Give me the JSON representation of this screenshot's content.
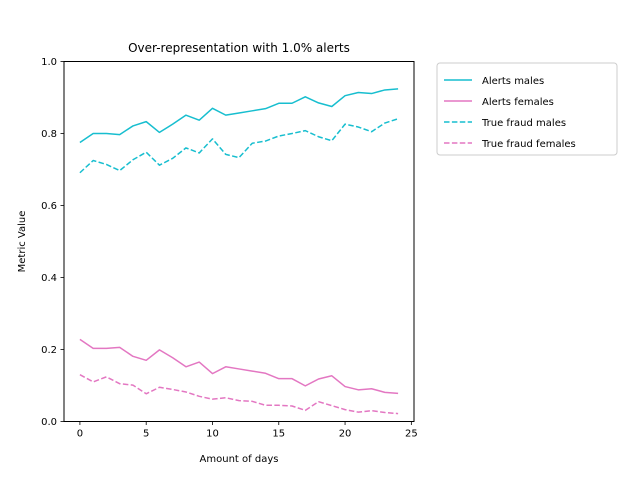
{
  "chart_data": {
    "type": "line",
    "title": "Over-representation with 1.0% alerts",
    "xlabel": "Amount of days",
    "ylabel": "Metric Value",
    "xlim": [
      -1.2,
      25.2
    ],
    "ylim": [
      0,
      1.0
    ],
    "xticks": [
      0,
      5,
      10,
      15,
      20,
      25
    ],
    "yticks": [
      0.0,
      0.2,
      0.4,
      0.6,
      0.8,
      1.0
    ],
    "ytick_labels": [
      "0.0",
      "0.2",
      "0.4",
      "0.6",
      "0.8",
      "1.0"
    ],
    "grid": false,
    "legend_position": "outside-upper-right",
    "x": [
      0,
      1,
      2,
      3,
      4,
      5,
      6,
      7,
      8,
      9,
      10,
      11,
      12,
      13,
      14,
      15,
      16,
      17,
      18,
      19,
      20,
      21,
      22,
      23,
      24
    ],
    "series": [
      {
        "name": "Alerts males",
        "color": "#17becf",
        "linestyle": "solid",
        "values": [
          0.775,
          0.8,
          0.8,
          0.797,
          0.821,
          0.833,
          0.803,
          0.826,
          0.851,
          0.837,
          0.87,
          0.851,
          0.857,
          0.863,
          0.869,
          0.884,
          0.884,
          0.902,
          0.885,
          0.875,
          0.905,
          0.914,
          0.911,
          0.921,
          0.924
        ]
      },
      {
        "name": "Alerts females",
        "color": "#e377c2",
        "linestyle": "solid",
        "values": [
          0.228,
          0.203,
          0.203,
          0.206,
          0.181,
          0.17,
          0.199,
          0.177,
          0.152,
          0.165,
          0.133,
          0.152,
          0.146,
          0.14,
          0.134,
          0.119,
          0.119,
          0.099,
          0.118,
          0.127,
          0.097,
          0.088,
          0.091,
          0.081,
          0.078
        ]
      },
      {
        "name": "True fraud males",
        "color": "#17becf",
        "linestyle": "dashed",
        "values": [
          0.691,
          0.725,
          0.714,
          0.697,
          0.727,
          0.748,
          0.712,
          0.731,
          0.76,
          0.746,
          0.785,
          0.742,
          0.733,
          0.773,
          0.779,
          0.793,
          0.8,
          0.808,
          0.791,
          0.78,
          0.826,
          0.818,
          0.805,
          0.829,
          0.841
        ]
      },
      {
        "name": "True fraud females",
        "color": "#e377c2",
        "linestyle": "dashed",
        "values": [
          0.13,
          0.11,
          0.124,
          0.105,
          0.101,
          0.077,
          0.095,
          0.089,
          0.082,
          0.07,
          0.062,
          0.066,
          0.058,
          0.056,
          0.045,
          0.045,
          0.043,
          0.031,
          0.055,
          0.044,
          0.033,
          0.026,
          0.03,
          0.025,
          0.022
        ]
      }
    ]
  }
}
